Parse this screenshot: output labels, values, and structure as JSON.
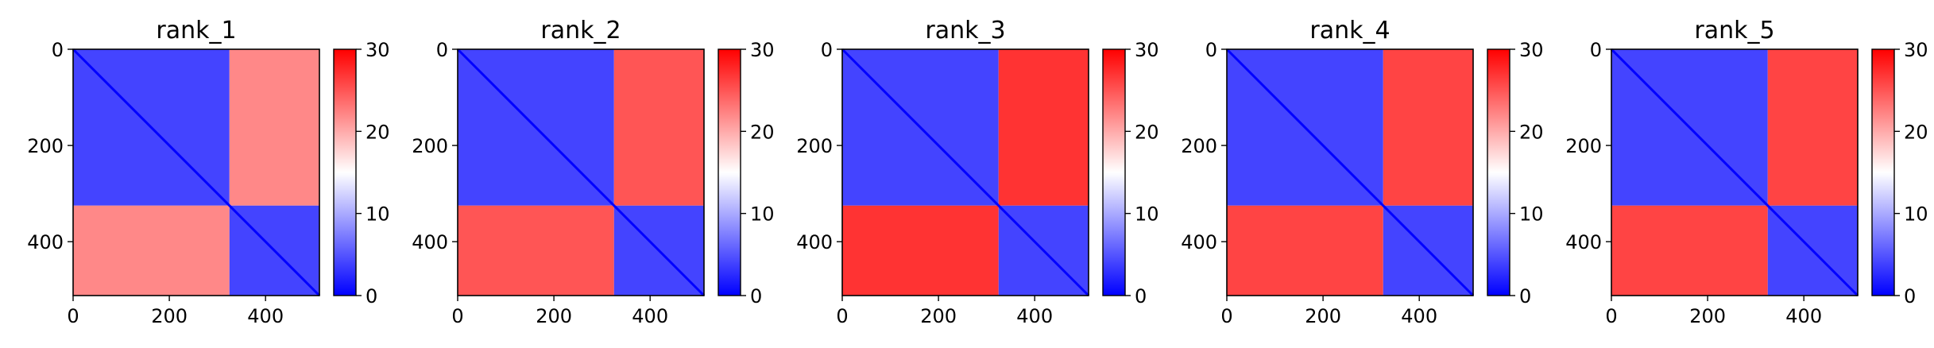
{
  "figure": {
    "panel_count": 5,
    "colormap": "bwr",
    "colors": {
      "low": "#0000ff",
      "mid": "#ffffff",
      "high": "#ff0000"
    }
  },
  "chart_data": [
    {
      "type": "heatmap",
      "title": "rank_1",
      "xlim": [
        0,
        512
      ],
      "ylim": [
        512,
        0
      ],
      "xticks": [
        0,
        200,
        400
      ],
      "yticks": [
        0,
        200,
        400
      ],
      "colorbar": {
        "vmin": 0,
        "vmax": 30,
        "ticks": [
          0,
          10,
          20,
          30
        ]
      },
      "domains": [
        [
          0,
          325
        ],
        [
          325,
          512
        ]
      ],
      "intra_domain_value": 4,
      "inter_domain_value": 22
    },
    {
      "type": "heatmap",
      "title": "rank_2",
      "xlim": [
        0,
        512
      ],
      "ylim": [
        512,
        0
      ],
      "xticks": [
        0,
        200,
        400
      ],
      "yticks": [
        0,
        200,
        400
      ],
      "colorbar": {
        "vmin": 0,
        "vmax": 30,
        "ticks": [
          0,
          10,
          20,
          30
        ]
      },
      "domains": [
        [
          0,
          325
        ],
        [
          325,
          512
        ]
      ],
      "intra_domain_value": 4,
      "inter_domain_value": 25
    },
    {
      "type": "heatmap",
      "title": "rank_3",
      "xlim": [
        0,
        512
      ],
      "ylim": [
        512,
        0
      ],
      "xticks": [
        0,
        200,
        400
      ],
      "yticks": [
        0,
        200,
        400
      ],
      "colorbar": {
        "vmin": 0,
        "vmax": 30,
        "ticks": [
          0,
          10,
          20,
          30
        ]
      },
      "domains": [
        [
          0,
          325
        ],
        [
          325,
          512
        ]
      ],
      "intra_domain_value": 4,
      "inter_domain_value": 27
    },
    {
      "type": "heatmap",
      "title": "rank_4",
      "xlim": [
        0,
        512
      ],
      "ylim": [
        512,
        0
      ],
      "xticks": [
        0,
        200,
        400
      ],
      "yticks": [
        0,
        200,
        400
      ],
      "colorbar": {
        "vmin": 0,
        "vmax": 30,
        "ticks": [
          0,
          10,
          20,
          30
        ]
      },
      "domains": [
        [
          0,
          325
        ],
        [
          325,
          512
        ]
      ],
      "intra_domain_value": 4,
      "inter_domain_value": 26
    },
    {
      "type": "heatmap",
      "title": "rank_5",
      "xlim": [
        0,
        512
      ],
      "ylim": [
        512,
        0
      ],
      "xticks": [
        0,
        200,
        400
      ],
      "yticks": [
        0,
        200,
        400
      ],
      "colorbar": {
        "vmin": 0,
        "vmax": 30,
        "ticks": [
          0,
          10,
          20,
          30
        ]
      },
      "domains": [
        [
          0,
          325
        ],
        [
          325,
          512
        ]
      ],
      "intra_domain_value": 4,
      "inter_domain_value": 26
    }
  ]
}
